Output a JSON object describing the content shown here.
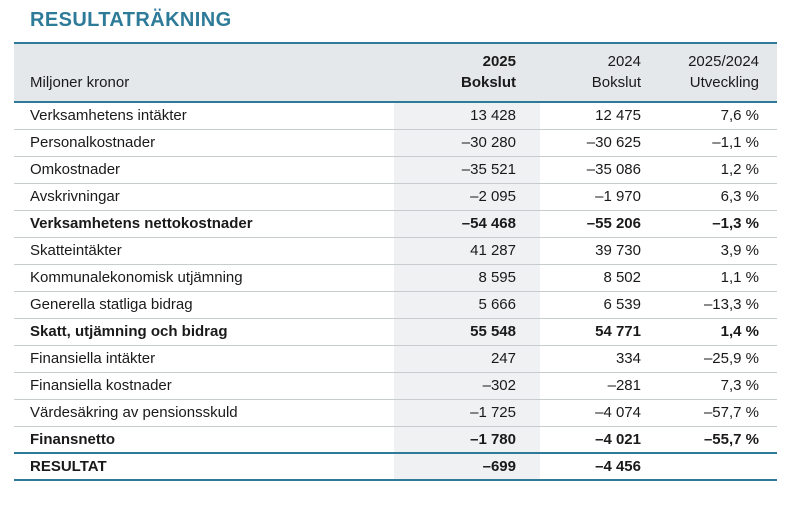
{
  "title": "RESULTATRÄKNING",
  "table": {
    "unit_label": "Miljoner kronor",
    "columns": [
      {
        "line1": "2025",
        "line2": "Bokslut"
      },
      {
        "line1": "2024",
        "line2": "Bokslut"
      },
      {
        "line1": "2025/2024",
        "line2": "Utveckling"
      }
    ],
    "rows": [
      {
        "label": "Verksamhetens intäkter",
        "bokslut_2025": "13 428",
        "bokslut_2024": "12 475",
        "utveckling": "7,6 %",
        "bold": false
      },
      {
        "label": "Personalkostnader",
        "bokslut_2025": "–30 280",
        "bokslut_2024": "–30 625",
        "utveckling": "–1,1 %",
        "bold": false
      },
      {
        "label": "Omkostnader",
        "bokslut_2025": "–35 521",
        "bokslut_2024": "–35 086",
        "utveckling": "1,2 %",
        "bold": false
      },
      {
        "label": "Avskrivningar",
        "bokslut_2025": "–2 095",
        "bokslut_2024": "–1 970",
        "utveckling": "6,3 %",
        "bold": false
      },
      {
        "label": "Verksamhetens nettokostnader",
        "bokslut_2025": "–54 468",
        "bokslut_2024": "–55 206",
        "utveckling": "–1,3 %",
        "bold": true
      },
      {
        "label": "Skatteintäkter",
        "bokslut_2025": "41 287",
        "bokslut_2024": "39 730",
        "utveckling": "3,9 %",
        "bold": false
      },
      {
        "label": "Kommunalekonomisk utjämning",
        "bokslut_2025": "8 595",
        "bokslut_2024": "8 502",
        "utveckling": "1,1 %",
        "bold": false
      },
      {
        "label": "Generella statliga bidrag",
        "bokslut_2025": "5 666",
        "bokslut_2024": "6 539",
        "utveckling": "–13,3 %",
        "bold": false
      },
      {
        "label": "Skatt, utjämning och bidrag",
        "bokslut_2025": "55 548",
        "bokslut_2024": "54 771",
        "utveckling": "1,4 %",
        "bold": true
      },
      {
        "label": "Finansiella intäkter",
        "bokslut_2025": "247",
        "bokslut_2024": "334",
        "utveckling": "–25,9 %",
        "bold": false
      },
      {
        "label": "Finansiella kostnader",
        "bokslut_2025": "–302",
        "bokslut_2024": "–281",
        "utveckling": "7,3 %",
        "bold": false
      },
      {
        "label": "Värdesäkring av pensionsskuld",
        "bokslut_2025": "–1 725",
        "bokslut_2024": "–4 074",
        "utveckling": "–57,7 %",
        "bold": false
      },
      {
        "label": "Finansnetto",
        "bokslut_2025": "–1 780",
        "bokslut_2024": "–4 021",
        "utveckling": "–55,7 %",
        "bold": true
      },
      {
        "label": "RESULTAT",
        "bokslut_2025": "–699",
        "bokslut_2024": "–4 456",
        "utveckling": "",
        "bold": true
      }
    ]
  },
  "colors": {
    "accent": "#2E7B99",
    "header_background": "#E4E8EA",
    "highlight_column_background": "#EFF1F3",
    "row_divider": "#C7CCCE",
    "text": "#1A1A1A"
  }
}
